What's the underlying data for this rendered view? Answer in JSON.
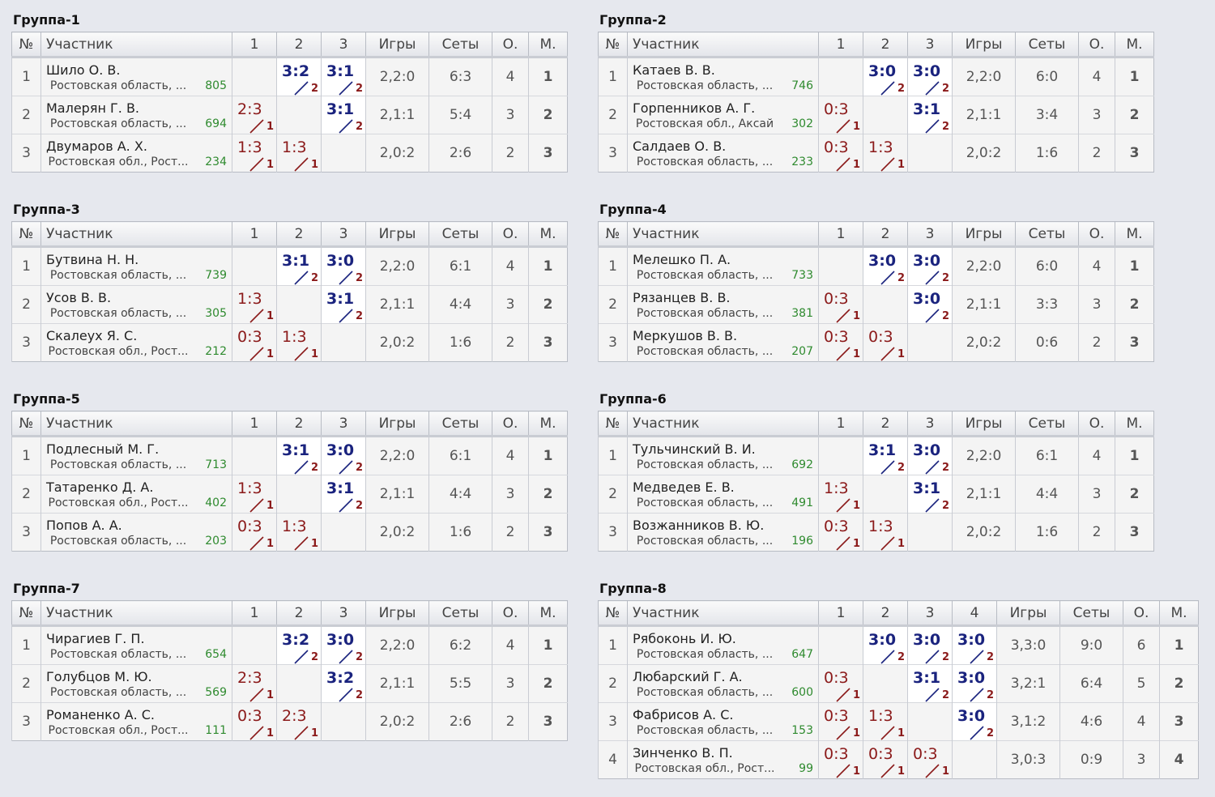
{
  "headers": {
    "num": "№",
    "participant": "Участник",
    "games": "Игры",
    "sets": "Сеты",
    "points": "О.",
    "place": "М."
  },
  "groups": [
    {
      "title": "Группа-1",
      "cols": [
        "1",
        "2",
        "3"
      ],
      "rows": [
        {
          "n": "1",
          "name": "Шило О. В.",
          "region": "Ростовская область, ...",
          "rating": "805",
          "scores": [
            null,
            {
              "v": "3:2",
              "p": "2",
              "w": true
            },
            {
              "v": "3:1",
              "p": "2",
              "w": true
            }
          ],
          "games": "2,2:0",
          "sets": "6:3",
          "points": "4",
          "place": "1"
        },
        {
          "n": "2",
          "name": "Малерян Г. В.",
          "region": "Ростовская область, ...",
          "rating": "694",
          "scores": [
            {
              "v": "2:3",
              "p": "1",
              "w": false
            },
            null,
            {
              "v": "3:1",
              "p": "2",
              "w": true
            }
          ],
          "games": "2,1:1",
          "sets": "5:4",
          "points": "3",
          "place": "2"
        },
        {
          "n": "3",
          "name": "Двумаров А. Х.",
          "region": "Ростовская обл., Рост...",
          "rating": "234",
          "scores": [
            {
              "v": "1:3",
              "p": "1",
              "w": false
            },
            {
              "v": "1:3",
              "p": "1",
              "w": false
            },
            null
          ],
          "games": "2,0:2",
          "sets": "2:6",
          "points": "2",
          "place": "3"
        }
      ]
    },
    {
      "title": "Группа-2",
      "cols": [
        "1",
        "2",
        "3"
      ],
      "rows": [
        {
          "n": "1",
          "name": "Катаев В. В.",
          "region": "Ростовская область, ...",
          "rating": "746",
          "scores": [
            null,
            {
              "v": "3:0",
              "p": "2",
              "w": true
            },
            {
              "v": "3:0",
              "p": "2",
              "w": true
            }
          ],
          "games": "2,2:0",
          "sets": "6:0",
          "points": "4",
          "place": "1"
        },
        {
          "n": "2",
          "name": "Горпенников А. Г.",
          "region": "Ростовская обл., Аксай",
          "rating": "302",
          "scores": [
            {
              "v": "0:3",
              "p": "1",
              "w": false
            },
            null,
            {
              "v": "3:1",
              "p": "2",
              "w": true
            }
          ],
          "games": "2,1:1",
          "sets": "3:4",
          "points": "3",
          "place": "2"
        },
        {
          "n": "3",
          "name": "Салдаев О. В.",
          "region": "Ростовская область, ...",
          "rating": "233",
          "scores": [
            {
              "v": "0:3",
              "p": "1",
              "w": false
            },
            {
              "v": "1:3",
              "p": "1",
              "w": false
            },
            null
          ],
          "games": "2,0:2",
          "sets": "1:6",
          "points": "2",
          "place": "3"
        }
      ]
    },
    {
      "title": "Группа-3",
      "cols": [
        "1",
        "2",
        "3"
      ],
      "rows": [
        {
          "n": "1",
          "name": "Бутвина Н. Н.",
          "region": "Ростовская область, ...",
          "rating": "739",
          "scores": [
            null,
            {
              "v": "3:1",
              "p": "2",
              "w": true
            },
            {
              "v": "3:0",
              "p": "2",
              "w": true
            }
          ],
          "games": "2,2:0",
          "sets": "6:1",
          "points": "4",
          "place": "1"
        },
        {
          "n": "2",
          "name": "Усов В. В.",
          "region": "Ростовская область, ...",
          "rating": "305",
          "scores": [
            {
              "v": "1:3",
              "p": "1",
              "w": false
            },
            null,
            {
              "v": "3:1",
              "p": "2",
              "w": true
            }
          ],
          "games": "2,1:1",
          "sets": "4:4",
          "points": "3",
          "place": "2"
        },
        {
          "n": "3",
          "name": "Скалеух Я. С.",
          "region": "Ростовская обл., Рост...",
          "rating": "212",
          "scores": [
            {
              "v": "0:3",
              "p": "1",
              "w": false
            },
            {
              "v": "1:3",
              "p": "1",
              "w": false
            },
            null
          ],
          "games": "2,0:2",
          "sets": "1:6",
          "points": "2",
          "place": "3"
        }
      ]
    },
    {
      "title": "Группа-4",
      "cols": [
        "1",
        "2",
        "3"
      ],
      "rows": [
        {
          "n": "1",
          "name": "Мелешко П. А.",
          "region": "Ростовская область, ...",
          "rating": "733",
          "scores": [
            null,
            {
              "v": "3:0",
              "p": "2",
              "w": true
            },
            {
              "v": "3:0",
              "p": "2",
              "w": true
            }
          ],
          "games": "2,2:0",
          "sets": "6:0",
          "points": "4",
          "place": "1"
        },
        {
          "n": "2",
          "name": "Рязанцев В. В.",
          "region": "Ростовская область, ...",
          "rating": "381",
          "scores": [
            {
              "v": "0:3",
              "p": "1",
              "w": false
            },
            null,
            {
              "v": "3:0",
              "p": "2",
              "w": true
            }
          ],
          "games": "2,1:1",
          "sets": "3:3",
          "points": "3",
          "place": "2"
        },
        {
          "n": "3",
          "name": "Меркушов В. В.",
          "region": "Ростовская область, ...",
          "rating": "207",
          "scores": [
            {
              "v": "0:3",
              "p": "1",
              "w": false
            },
            {
              "v": "0:3",
              "p": "1",
              "w": false
            },
            null
          ],
          "games": "2,0:2",
          "sets": "0:6",
          "points": "2",
          "place": "3"
        }
      ]
    },
    {
      "title": "Группа-5",
      "cols": [
        "1",
        "2",
        "3"
      ],
      "rows": [
        {
          "n": "1",
          "name": "Подлесный М. Г.",
          "region": "Ростовская область, ...",
          "rating": "713",
          "scores": [
            null,
            {
              "v": "3:1",
              "p": "2",
              "w": true
            },
            {
              "v": "3:0",
              "p": "2",
              "w": true
            }
          ],
          "games": "2,2:0",
          "sets": "6:1",
          "points": "4",
          "place": "1"
        },
        {
          "n": "2",
          "name": "Татаренко Д. А.",
          "region": "Ростовская обл., Рост...",
          "rating": "402",
          "scores": [
            {
              "v": "1:3",
              "p": "1",
              "w": false
            },
            null,
            {
              "v": "3:1",
              "p": "2",
              "w": true
            }
          ],
          "games": "2,1:1",
          "sets": "4:4",
          "points": "3",
          "place": "2"
        },
        {
          "n": "3",
          "name": "Попов А. А.",
          "region": "Ростовская область, ...",
          "rating": "203",
          "scores": [
            {
              "v": "0:3",
              "p": "1",
              "w": false
            },
            {
              "v": "1:3",
              "p": "1",
              "w": false
            },
            null
          ],
          "games": "2,0:2",
          "sets": "1:6",
          "points": "2",
          "place": "3"
        }
      ]
    },
    {
      "title": "Группа-6",
      "cols": [
        "1",
        "2",
        "3"
      ],
      "rows": [
        {
          "n": "1",
          "name": "Тульчинский В. И.",
          "region": "Ростовская область, ...",
          "rating": "692",
          "scores": [
            null,
            {
              "v": "3:1",
              "p": "2",
              "w": true
            },
            {
              "v": "3:0",
              "p": "2",
              "w": true
            }
          ],
          "games": "2,2:0",
          "sets": "6:1",
          "points": "4",
          "place": "1"
        },
        {
          "n": "2",
          "name": "Медведев Е. В.",
          "region": "Ростовская область, ...",
          "rating": "491",
          "scores": [
            {
              "v": "1:3",
              "p": "1",
              "w": false
            },
            null,
            {
              "v": "3:1",
              "p": "2",
              "w": true
            }
          ],
          "games": "2,1:1",
          "sets": "4:4",
          "points": "3",
          "place": "2"
        },
        {
          "n": "3",
          "name": "Возжанников В. Ю.",
          "region": "Ростовская область, ...",
          "rating": "196",
          "scores": [
            {
              "v": "0:3",
              "p": "1",
              "w": false
            },
            {
              "v": "1:3",
              "p": "1",
              "w": false
            },
            null
          ],
          "games": "2,0:2",
          "sets": "1:6",
          "points": "2",
          "place": "3"
        }
      ]
    },
    {
      "title": "Группа-7",
      "cols": [
        "1",
        "2",
        "3"
      ],
      "rows": [
        {
          "n": "1",
          "name": "Чирагиев Г. П.",
          "region": "Ростовская область, ...",
          "rating": "654",
          "scores": [
            null,
            {
              "v": "3:2",
              "p": "2",
              "w": true
            },
            {
              "v": "3:0",
              "p": "2",
              "w": true
            }
          ],
          "games": "2,2:0",
          "sets": "6:2",
          "points": "4",
          "place": "1"
        },
        {
          "n": "2",
          "name": "Голубцов М. Ю.",
          "region": "Ростовская область, ...",
          "rating": "569",
          "scores": [
            {
              "v": "2:3",
              "p": "1",
              "w": false
            },
            null,
            {
              "v": "3:2",
              "p": "2",
              "w": true
            }
          ],
          "games": "2,1:1",
          "sets": "5:5",
          "points": "3",
          "place": "2"
        },
        {
          "n": "3",
          "name": "Романенко А. С.",
          "region": "Ростовская обл., Рост...",
          "rating": "111",
          "scores": [
            {
              "v": "0:3",
              "p": "1",
              "w": false
            },
            {
              "v": "2:3",
              "p": "1",
              "w": false
            },
            null
          ],
          "games": "2,0:2",
          "sets": "2:6",
          "points": "2",
          "place": "3"
        }
      ]
    },
    {
      "title": "Группа-8",
      "cols": [
        "1",
        "2",
        "3",
        "4"
      ],
      "rows": [
        {
          "n": "1",
          "name": "Рябоконь И. Ю.",
          "region": "Ростовская область, ...",
          "rating": "647",
          "scores": [
            null,
            {
              "v": "3:0",
              "p": "2",
              "w": true
            },
            {
              "v": "3:0",
              "p": "2",
              "w": true
            },
            {
              "v": "3:0",
              "p": "2",
              "w": true
            }
          ],
          "games": "3,3:0",
          "sets": "9:0",
          "points": "6",
          "place": "1"
        },
        {
          "n": "2",
          "name": "Любарский Г. А.",
          "region": "Ростовская область, ...",
          "rating": "600",
          "scores": [
            {
              "v": "0:3",
              "p": "1",
              "w": false
            },
            null,
            {
              "v": "3:1",
              "p": "2",
              "w": true
            },
            {
              "v": "3:0",
              "p": "2",
              "w": true
            }
          ],
          "games": "3,2:1",
          "sets": "6:4",
          "points": "5",
          "place": "2"
        },
        {
          "n": "3",
          "name": "Фабрисов А. С.",
          "region": "Ростовская область, ...",
          "rating": "153",
          "scores": [
            {
              "v": "0:3",
              "p": "1",
              "w": false
            },
            {
              "v": "1:3",
              "p": "1",
              "w": false
            },
            null,
            {
              "v": "3:0",
              "p": "2",
              "w": true
            }
          ],
          "games": "3,1:2",
          "sets": "4:6",
          "points": "4",
          "place": "3"
        },
        {
          "n": "4",
          "name": "Зинченко В. П.",
          "region": "Ростовская обл., Рост...",
          "rating": "99",
          "scores": [
            {
              "v": "0:3",
              "p": "1",
              "w": false
            },
            {
              "v": "0:3",
              "p": "1",
              "w": false
            },
            {
              "v": "0:3",
              "p": "1",
              "w": false
            },
            null
          ],
          "games": "3,0:3",
          "sets": "0:9",
          "points": "3",
          "place": "4"
        }
      ]
    }
  ]
}
